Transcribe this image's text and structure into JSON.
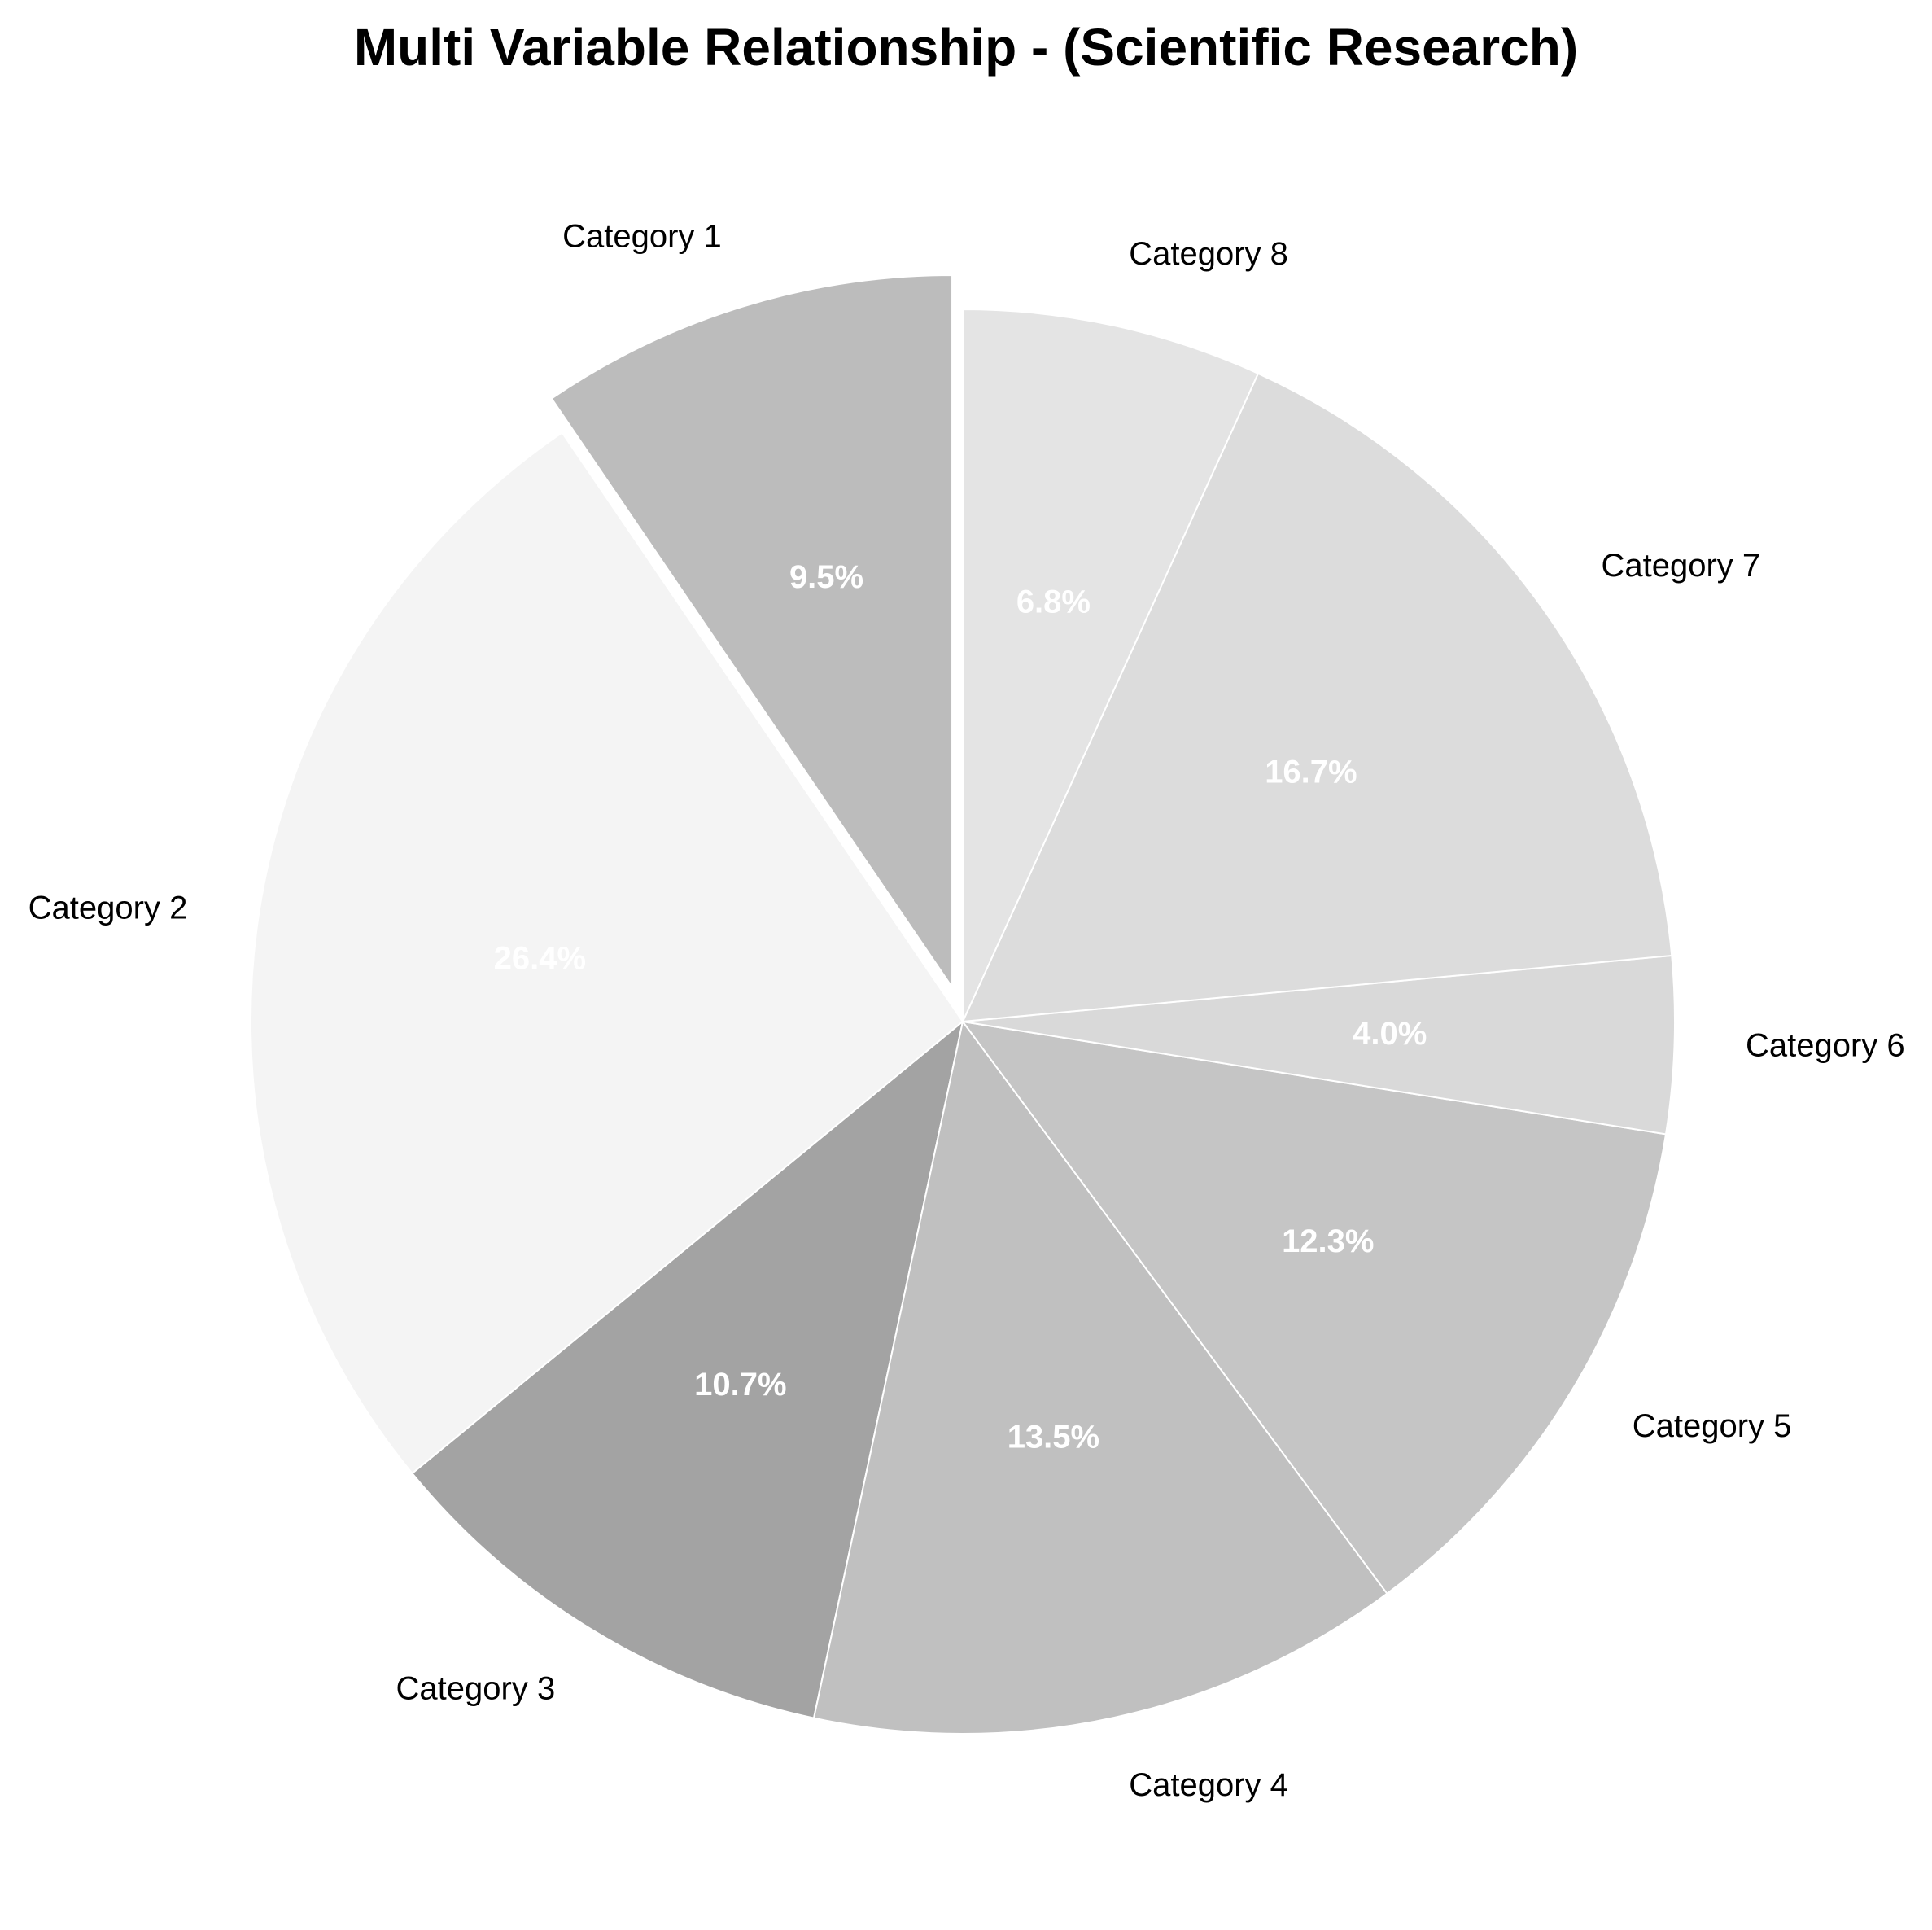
{
  "chart_data": {
    "type": "pie",
    "title": "Multi Variable Relationship - (Scientific Research)",
    "categories": [
      "Category 1",
      "Category 2",
      "Category 3",
      "Category 4",
      "Category 5",
      "Category 6",
      "Category 7",
      "Category 8"
    ],
    "values": [
      9.5,
      26.4,
      10.7,
      13.5,
      12.3,
      4.0,
      16.7,
      6.8
    ],
    "value_labels": [
      "9.5%",
      "26.4%",
      "10.7%",
      "13.5%",
      "12.3%",
      "4.0%",
      "16.7%",
      "6.8%"
    ],
    "colors": [
      "#bcbcbc",
      "#f4f4f4",
      "#a3a3a3",
      "#c0c0c0",
      "#c5c5c5",
      "#d9d9d9",
      "#dcdcdc",
      "#e4e4e4"
    ],
    "exploded": [
      "Category 1"
    ],
    "direction": "counterclockwise",
    "start": "top"
  }
}
